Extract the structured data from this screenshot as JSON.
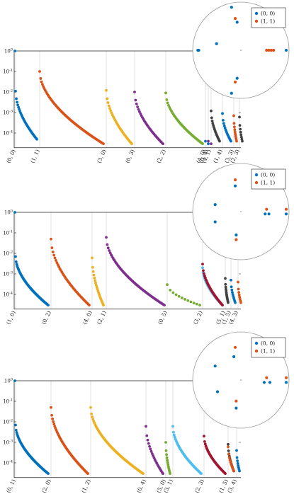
{
  "colors": {
    "blue": "#0072bd",
    "orange": "#d95319",
    "yellow": "#edb120",
    "purple": "#7e2f8e",
    "green": "#77ac30",
    "cyan": "#4dbeee",
    "red": "#a2142f",
    "dark": "#404040",
    "grid": "#cccccc",
    "axis": "#222222"
  },
  "chart_data": [
    {
      "type": "scatter",
      "yscale": "log",
      "ylim": [
        5e-05,
        1
      ],
      "y_ticks": [
        "10^0",
        "10^-1",
        "10^-2",
        "10^-3",
        "10^-4"
      ],
      "categories": [
        "(0, 0)",
        "(1, 1)",
        "(3, 0)",
        "(0, 3)",
        "(2, 2)",
        "(4, 0)",
        "(0, 4)",
        "(4, 1)",
        "(1, 4)",
        "(3, 3)",
        "(2, 3)"
      ],
      "series": [
        {
          "category": "(0, 0)",
          "color": "blue",
          "top": 0.011,
          "bottom": 5e-05,
          "points": 30
        },
        {
          "category": "(1, 1)",
          "color": "orange",
          "top": 0.1,
          "bottom": 3e-05,
          "points": 70
        },
        {
          "category": "(3, 0)",
          "color": "yellow",
          "top": 0.012,
          "bottom": 3e-05,
          "points": 30
        },
        {
          "category": "(0, 3)",
          "color": "purple",
          "top": 0.01,
          "bottom": 3e-05,
          "points": 30
        },
        {
          "category": "(2, 2)",
          "color": "green",
          "top": 0.009,
          "bottom": 3e-05,
          "points": 40
        },
        {
          "category": "(4, 0)",
          "color": "blue",
          "top": 4e-05,
          "bottom": 3e-05,
          "points": 2
        },
        {
          "category": "(0, 4)",
          "color": "purple",
          "top": 4e-05,
          "bottom": 3e-05,
          "points": 2
        },
        {
          "category": "(4, 1)",
          "color": "dark",
          "top": 0.0012,
          "bottom": 4e-05,
          "points": 16
        },
        {
          "category": "(1, 4)",
          "color": "blue",
          "top": 0.0009,
          "bottom": 4e-05,
          "points": 14
        },
        {
          "category": "(3, 3)",
          "color": "orange",
          "top": 0.0007,
          "bottom": 4e-05,
          "points": 10
        },
        {
          "category": "(2, 3)",
          "color": "dark",
          "top": 0.0006,
          "bottom": 4e-05,
          "points": 8
        }
      ],
      "inset": {
        "legend": [
          "(0, 0)",
          "(1, 1)"
        ],
        "points": [
          {
            "x": -0.9,
            "y": 0.0,
            "color": "blue"
          },
          {
            "x": 0.55,
            "y": 0.0,
            "color": "orange"
          },
          {
            "x": 0.6,
            "y": 0.0,
            "color": "orange"
          },
          {
            "x": 0.65,
            "y": 0.0,
            "color": "orange"
          },
          {
            "x": 0.7,
            "y": 0.0,
            "color": "orange"
          },
          {
            "x": 0.97,
            "y": 0.0,
            "color": "blue"
          },
          {
            "x": -0.52,
            "y": 0.14,
            "color": "blue"
          },
          {
            "x": -0.12,
            "y": 0.68,
            "color": "orange"
          },
          {
            "x": -0.08,
            "y": 0.6,
            "color": "blue"
          },
          {
            "x": -0.12,
            "y": -0.68,
            "color": "orange"
          },
          {
            "x": -0.08,
            "y": -0.6,
            "color": "blue"
          },
          {
            "x": -0.2,
            "y": 0.92,
            "color": "blue"
          },
          {
            "x": -0.2,
            "y": -0.92,
            "color": "blue"
          },
          {
            "x": -0.92,
            "y": 0.0,
            "color": "blue"
          }
        ]
      }
    },
    {
      "type": "scatter",
      "yscale": "log",
      "ylim": [
        5e-05,
        1
      ],
      "y_ticks": [
        "10^0",
        "10^-1",
        "10^-2",
        "10^-3",
        "10^-4"
      ],
      "categories": [
        "(1, 0)",
        "(0, 2)",
        "(4, 0)",
        "(2, 1)",
        "(0, 5)",
        "(3, 2)",
        "(5, 1)",
        "(1, 5)",
        "(4, 3)"
      ],
      "series": [
        {
          "category": "(1, 0)",
          "color": "blue",
          "top": 0.007,
          "bottom": 3e-05,
          "points": 60
        },
        {
          "category": "(0, 2)",
          "color": "orange",
          "top": 0.05,
          "bottom": 3e-05,
          "points": 40
        },
        {
          "category": "(4, 0)",
          "color": "yellow",
          "top": 0.006,
          "bottom": 3e-05,
          "points": 20
        },
        {
          "category": "(2, 1)",
          "color": "purple",
          "top": 0.06,
          "bottom": 3e-05,
          "points": 60
        },
        {
          "category": "(0, 5)",
          "color": "green",
          "top": 0.0003,
          "bottom": 3e-05,
          "points": 12
        },
        {
          "category": "(3, 2)",
          "color": "cyan",
          "top": 0.002,
          "bottom": 3e-05,
          "points": 40
        },
        {
          "category": "(3, 2)",
          "color": "red",
          "top": 0.003,
          "bottom": 3e-05,
          "points": 30
        },
        {
          "category": "(5, 1)",
          "color": "dark",
          "top": 0.0006,
          "bottom": 4e-05,
          "points": 14
        },
        {
          "category": "(1, 5)",
          "color": "blue",
          "top": 0.0005,
          "bottom": 4e-05,
          "points": 10
        },
        {
          "category": "(4, 3)",
          "color": "orange",
          "top": 0.0004,
          "bottom": 4e-05,
          "points": 8
        }
      ],
      "inset": {
        "legend": [
          "(0, 0)",
          "(1, 1)"
        ],
        "points": [
          {
            "x": 0.97,
            "y": 0.05,
            "color": "orange"
          },
          {
            "x": 0.97,
            "y": -0.05,
            "color": "blue"
          },
          {
            "x": 0.55,
            "y": 0.05,
            "color": "orange"
          },
          {
            "x": 0.52,
            "y": -0.05,
            "color": "blue"
          },
          {
            "x": 0.6,
            "y": -0.05,
            "color": "blue"
          },
          {
            "x": -0.55,
            "y": 0.15,
            "color": "blue"
          },
          {
            "x": -0.55,
            "y": -0.22,
            "color": "blue"
          },
          {
            "x": -0.12,
            "y": 0.68,
            "color": "orange"
          },
          {
            "x": -0.12,
            "y": 0.55,
            "color": "blue"
          },
          {
            "x": -0.1,
            "y": -0.5,
            "color": "blue"
          },
          {
            "x": -0.1,
            "y": -0.6,
            "color": "orange"
          }
        ]
      }
    },
    {
      "type": "scatter",
      "yscale": "log",
      "ylim": [
        5e-05,
        1
      ],
      "y_ticks": [
        "10^0",
        "10^-1",
        "10^-2",
        "10^-3",
        "10^-4"
      ],
      "categories": [
        "(0, 1)",
        "(2, 0)",
        "(1, 2)",
        "(0, 4)",
        "(5, 0)",
        "(3, 1)",
        "(2, 3)",
        "(1, 5)",
        "(3, 4)"
      ],
      "series": [
        {
          "category": "(0, 1)",
          "color": "blue",
          "top": 0.007,
          "bottom": 3e-05,
          "points": 60
        },
        {
          "category": "(2, 0)",
          "color": "orange",
          "top": 0.05,
          "bottom": 3e-05,
          "points": 50
        },
        {
          "category": "(1, 2)",
          "color": "yellow",
          "top": 0.05,
          "bottom": 3e-05,
          "points": 70
        },
        {
          "category": "(0, 4)",
          "color": "purple",
          "top": 0.006,
          "bottom": 3e-05,
          "points": 20
        },
        {
          "category": "(5, 0)",
          "color": "green",
          "top": 0.001,
          "bottom": 3e-05,
          "points": 12
        },
        {
          "category": "(3, 1)",
          "color": "cyan",
          "top": 0.006,
          "bottom": 3e-05,
          "points": 45
        },
        {
          "category": "(2, 3)",
          "color": "red",
          "top": 0.002,
          "bottom": 3e-05,
          "points": 35
        },
        {
          "category": "(1, 5)",
          "color": "dark",
          "top": 0.0008,
          "bottom": 4e-05,
          "points": 14
        },
        {
          "category": "(1, 5)",
          "color": "orange",
          "top": 0.0006,
          "bottom": 4e-05,
          "points": 10
        },
        {
          "category": "(3, 4)",
          "color": "blue",
          "top": 0.0004,
          "bottom": 4e-05,
          "points": 8
        }
      ],
      "inset": {
        "legend": [
          "(0, 0)",
          "(1, 1)"
        ],
        "points": [
          {
            "x": 0.97,
            "y": 0.05,
            "color": "orange"
          },
          {
            "x": 0.97,
            "y": -0.05,
            "color": "blue"
          },
          {
            "x": 0.55,
            "y": 0.05,
            "color": "orange"
          },
          {
            "x": 0.5,
            "y": -0.05,
            "color": "blue"
          },
          {
            "x": 0.62,
            "y": -0.05,
            "color": "blue"
          },
          {
            "x": -0.55,
            "y": 0.3,
            "color": "blue"
          },
          {
            "x": -0.5,
            "y": -0.25,
            "color": "blue"
          },
          {
            "x": -0.12,
            "y": 0.7,
            "color": "orange"
          },
          {
            "x": -0.15,
            "y": 0.5,
            "color": "blue"
          },
          {
            "x": -0.1,
            "y": -0.45,
            "color": "orange"
          },
          {
            "x": -0.1,
            "y": -0.6,
            "color": "blue"
          }
        ]
      }
    }
  ]
}
